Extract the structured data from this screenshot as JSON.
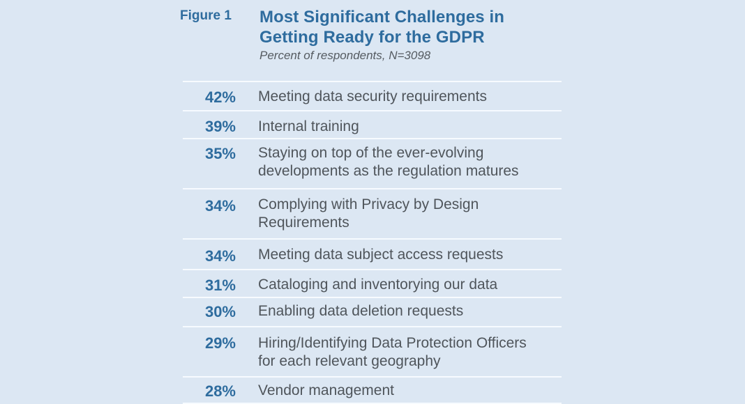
{
  "figure_label": "Figure 1",
  "title_line1": "Most Significant Challenges in",
  "title_line2": "Getting Ready for the GDPR",
  "subtitle": "Percent of respondents, N=3098",
  "colors": {
    "background": "#dce7f3",
    "accent": "#2e6c9e",
    "text": "#4f555b",
    "rule": "#f7fbff"
  },
  "chart_data": {
    "type": "table",
    "title": "Most Significant Challenges in Getting Ready for the GDPR",
    "subtitle": "Percent of respondents, N=3098",
    "columns": [
      "Percent",
      "Challenge"
    ],
    "rows": [
      {
        "value": 42,
        "pct_label": "42%",
        "label_lines": [
          "Meeting data security requirements"
        ]
      },
      {
        "value": 39,
        "pct_label": "39%",
        "label_lines": [
          "Internal training"
        ]
      },
      {
        "value": 35,
        "pct_label": "35%",
        "label_lines": [
          "Staying on top of the ever-evolving",
          "developments as the regulation matures"
        ]
      },
      {
        "value": 34,
        "pct_label": "34%",
        "label_lines": [
          "Complying with Privacy by Design",
          "Requirements"
        ]
      },
      {
        "value": 34,
        "pct_label": "34%",
        "label_lines": [
          "Meeting data subject access requests"
        ]
      },
      {
        "value": 31,
        "pct_label": "31%",
        "label_lines": [
          "Cataloging and inventorying our data"
        ]
      },
      {
        "value": 30,
        "pct_label": "30%",
        "label_lines": [
          "Enabling data deletion requests"
        ]
      },
      {
        "value": 29,
        "pct_label": "29%",
        "label_lines": [
          "Hiring/Identifying Data Protection Officers",
          "for each relevant geography"
        ]
      },
      {
        "value": 28,
        "pct_label": "28%",
        "label_lines": [
          "Vendor management"
        ]
      }
    ]
  }
}
